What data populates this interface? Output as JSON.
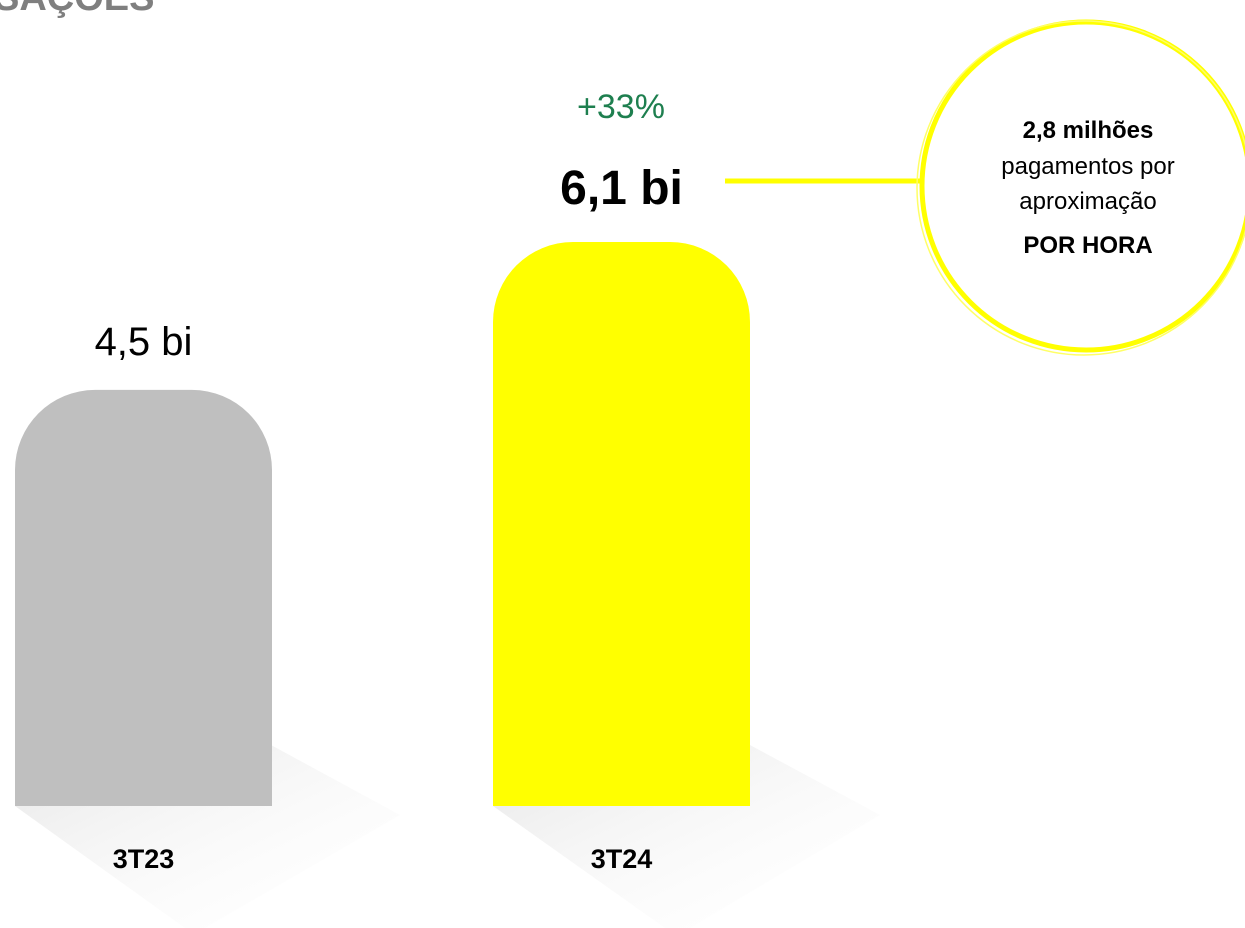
{
  "chart_data": {
    "type": "bar",
    "title": "SAÇÕES",
    "categories": [
      "3T23",
      "3T24"
    ],
    "values": [
      4.5,
      6.1
    ],
    "value_labels": [
      "4,5 bi",
      "6,1 bi"
    ],
    "colors": [
      "#bfbfbf",
      "#ffff00"
    ],
    "annotation": "+33%",
    "annotation_color": "#1e7f4f",
    "callout": [
      "2,8 milhões",
      "pagamentos por",
      "aproximação",
      "POR HORA"
    ]
  }
}
